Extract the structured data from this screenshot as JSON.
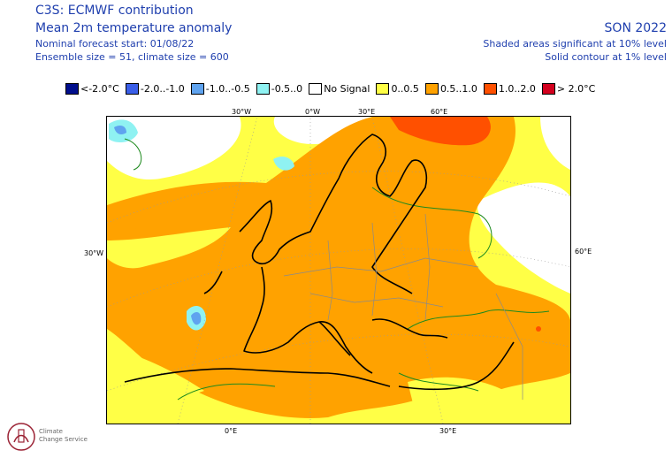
{
  "header": {
    "title": "C3S: ECMWF contribution",
    "subtitle": "Mean 2m temperature anomaly",
    "forecast_start": "Nominal forecast start: 01/08/22",
    "ensemble": "Ensemble size = 51, climate size = 600",
    "season": "SON 2022",
    "note_shaded": "Shaded areas significant at 10% level",
    "note_contour": "Solid contour at 1% level"
  },
  "legend": [
    {
      "label": "<-2.0°C",
      "color": "#000e8c"
    },
    {
      "label": "-2.0..-1.0",
      "color": "#3a5ee8"
    },
    {
      "label": "-1.0..-0.5",
      "color": "#5fa3ef"
    },
    {
      "label": "-0.5..0",
      "color": "#8ff2f2"
    },
    {
      "label": "No Signal",
      "color": "#ffffff"
    },
    {
      "label": "0..0.5",
      "color": "#ffff46"
    },
    {
      "label": "0.5..1.0",
      "color": "#ffa200"
    },
    {
      "label": "1.0..2.0",
      "color": "#ff5000"
    },
    {
      "label": "> 2.0°C",
      "color": "#d3001e"
    }
  ],
  "map": {
    "top_labels": [
      "30°W",
      "0°W",
      "30°E",
      "60°E"
    ],
    "left_label": "30°W",
    "right_label": "60°E",
    "bottom_labels": [
      "0°E",
      "30°E"
    ]
  },
  "logo": {
    "line1": "Climate",
    "line2": "Change Service"
  }
}
